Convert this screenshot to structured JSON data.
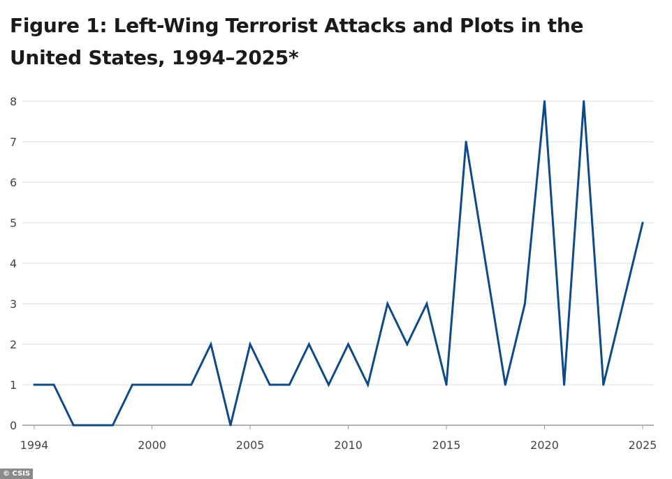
{
  "title": "Figure 1: Left-Wing Terrorist Attacks and Plots in the United States, 1994–2025*",
  "credit": "© CSIS",
  "chart_data": {
    "type": "line",
    "title": "Figure 1: Left-Wing Terrorist Attacks and Plots in the United States, 1994–2025*",
    "xlabel": "",
    "ylabel": "",
    "x": [
      1994,
      1995,
      1996,
      1997,
      1998,
      1999,
      2000,
      2001,
      2002,
      2003,
      2004,
      2005,
      2006,
      2007,
      2008,
      2009,
      2010,
      2011,
      2012,
      2013,
      2014,
      2015,
      2016,
      2017,
      2018,
      2019,
      2020,
      2021,
      2022,
      2023,
      2024,
      2025
    ],
    "series": [
      {
        "values": [
          1,
          1,
          0,
          0,
          0,
          1,
          1,
          1,
          1,
          2,
          0,
          2,
          1,
          1,
          2,
          1,
          2,
          1,
          3,
          2,
          3,
          1,
          7,
          4,
          1,
          3,
          8,
          1,
          8,
          1,
          3,
          5
        ],
        "color": "#0e4a8a"
      }
    ],
    "xlim": [
      1994,
      2025
    ],
    "ylim": [
      0,
      8
    ],
    "x_ticks": [
      1994,
      2000,
      2005,
      2010,
      2015,
      2020,
      2025
    ],
    "y_ticks": [
      0,
      1,
      2,
      3,
      4,
      5,
      6,
      7,
      8
    ],
    "grid": true,
    "legend": "none"
  }
}
